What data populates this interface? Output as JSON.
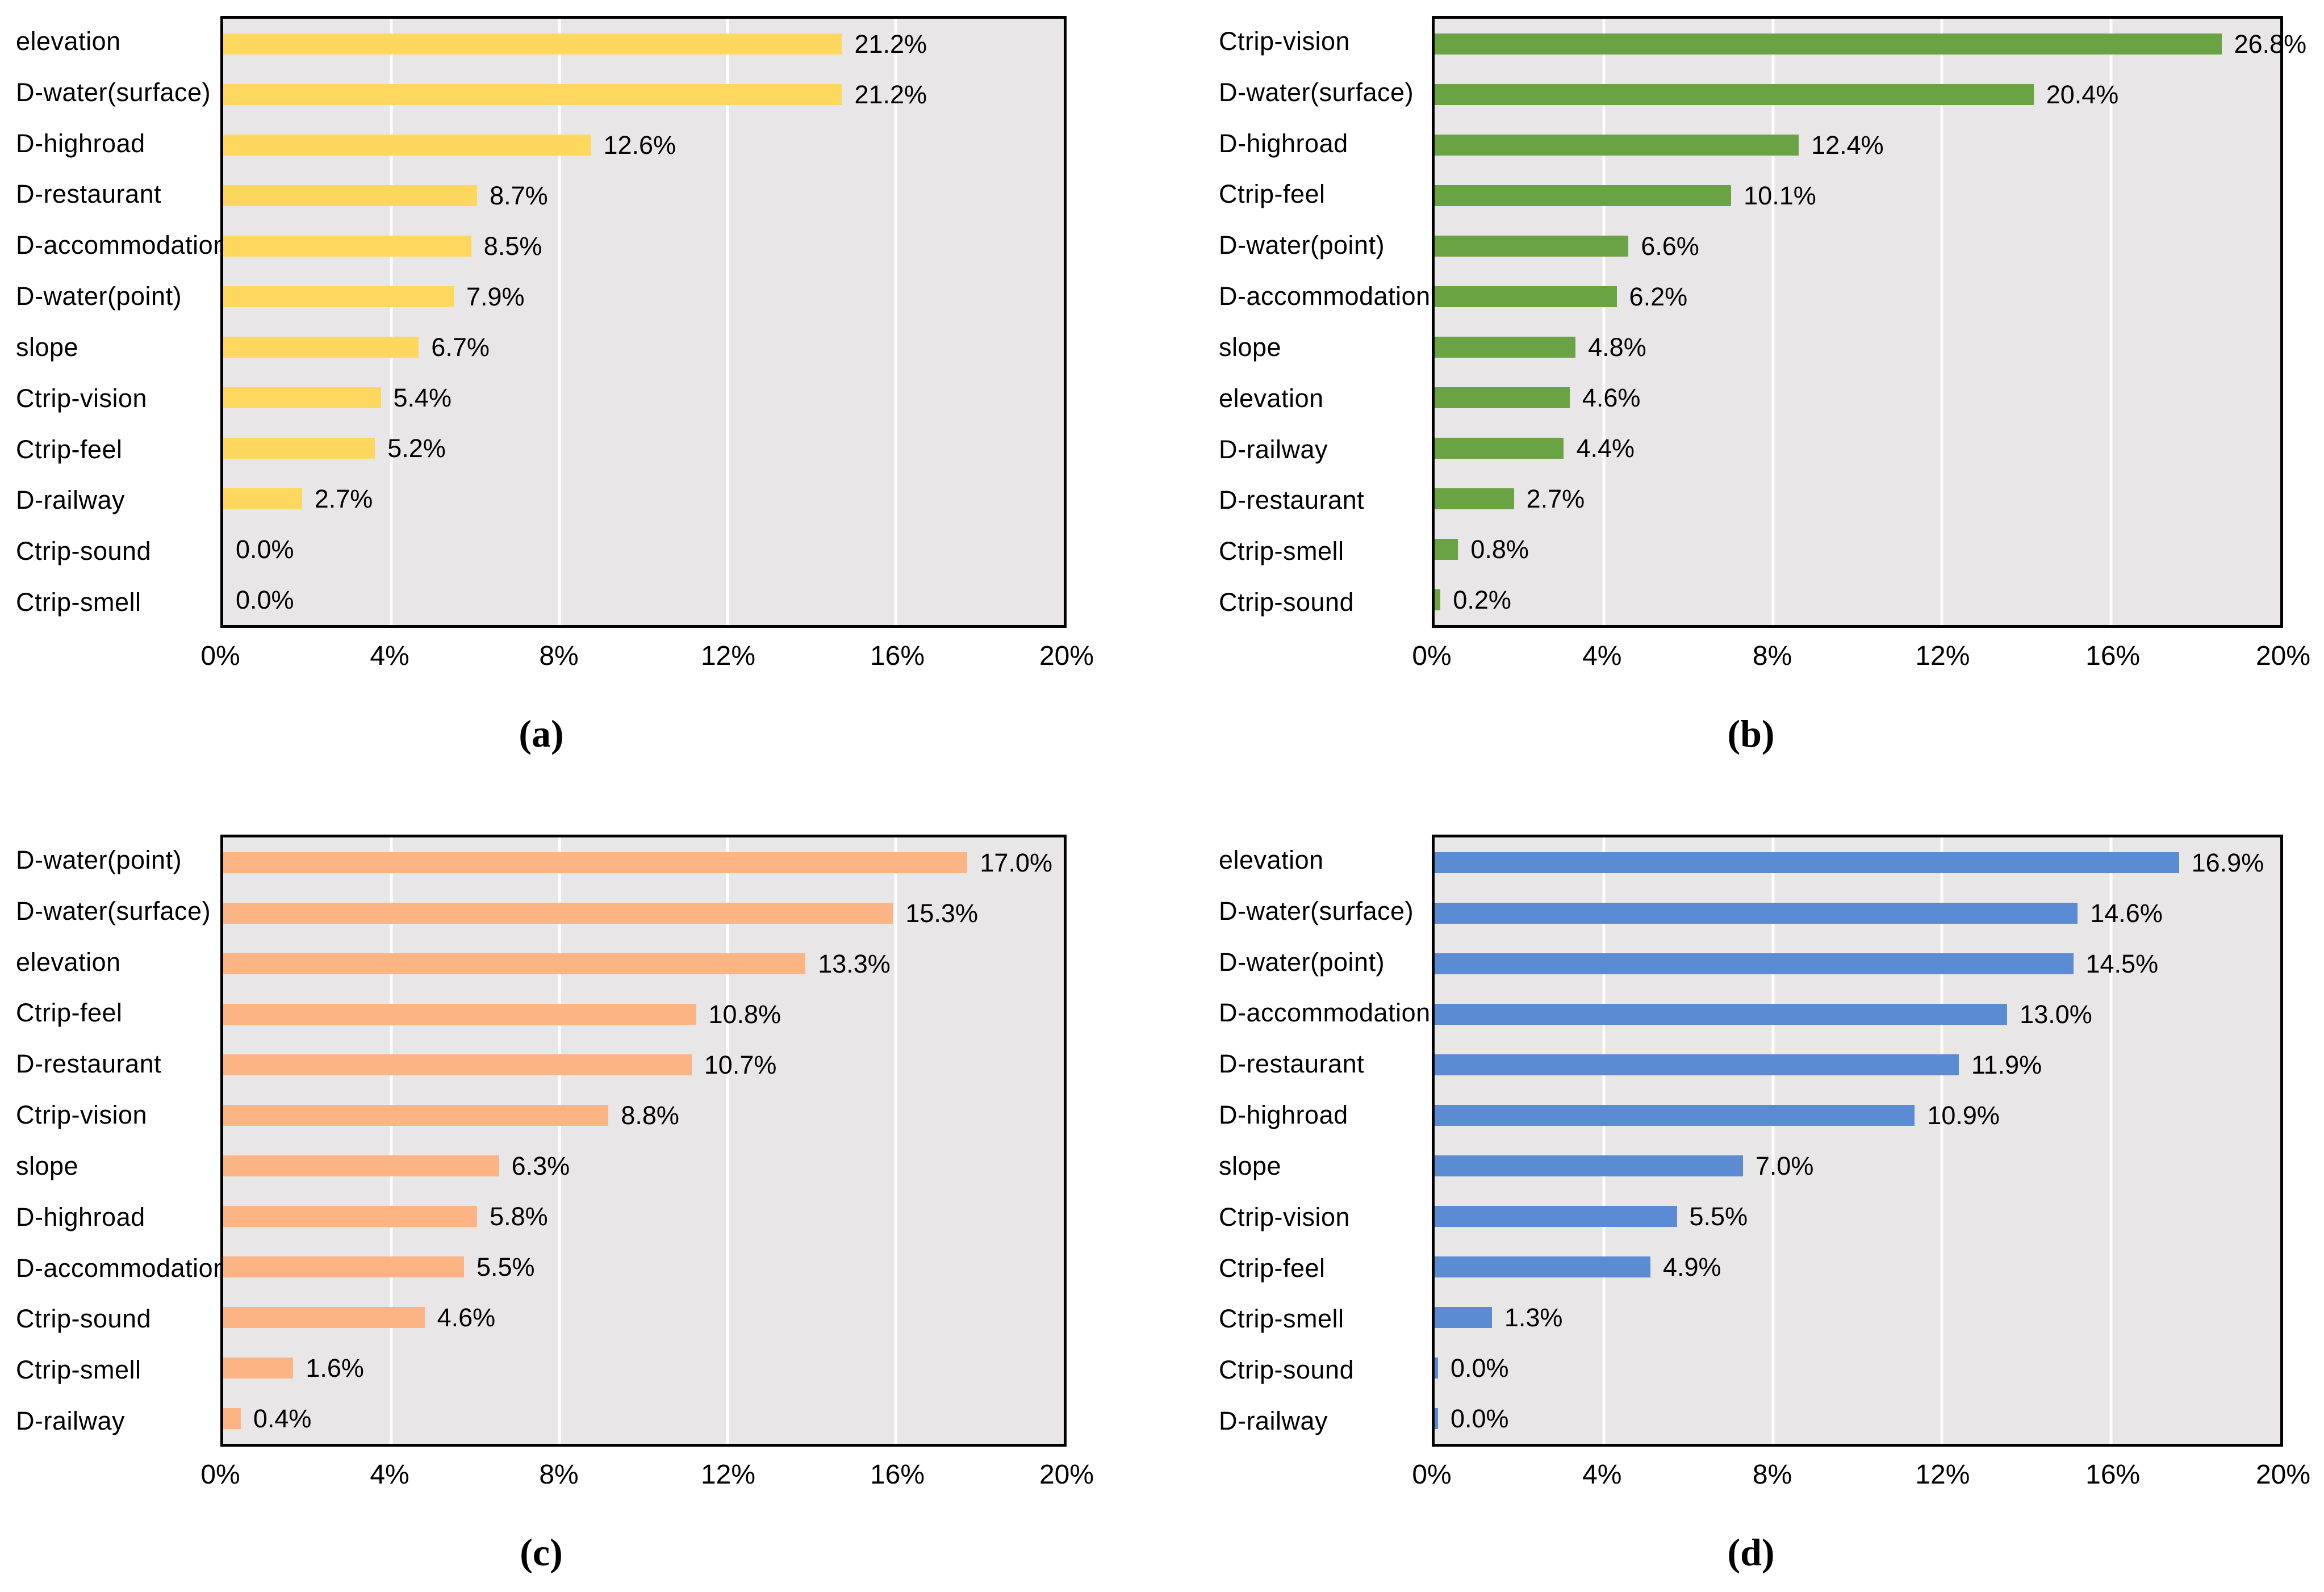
{
  "figure": {
    "background_color": "#ffffff",
    "plot_background_color": "#E8E6E6",
    "plot_border_color": "#000000",
    "gridline_color": "#ffffff"
  },
  "axis": {
    "tick_labels": [
      "0%",
      "4%",
      "8%",
      "12%",
      "16%",
      "20%"
    ],
    "xlim": [
      0,
      20
    ],
    "gridline_positions_pct": [
      20,
      40,
      60,
      80
    ],
    "value_suffix": "%"
  },
  "chart_data": [
    {
      "type": "bar",
      "orientation": "horizontal",
      "panel_id": "a",
      "caption": "(a)",
      "color": "#FED75F",
      "bar_scale_max": 28.8,
      "min_sliver_pct": 0,
      "xlabel": "",
      "ylabel": "",
      "xlim": [
        0,
        20
      ],
      "categories": [
        "elevation",
        "D-water(surface)",
        "D-highroad",
        "D-restaurant",
        "D-accommodation",
        "D-water(point)",
        "slope",
        "Ctrip-vision",
        "Ctrip-feel",
        "D-railway",
        "Ctrip-sound",
        "Ctrip-smell"
      ],
      "values": [
        21.2,
        21.2,
        12.6,
        8.7,
        8.5,
        7.9,
        6.7,
        5.4,
        5.2,
        2.7,
        0.0,
        0.0
      ]
    },
    {
      "type": "bar",
      "orientation": "horizontal",
      "panel_id": "b",
      "caption": "(b)",
      "color": "#69A344",
      "bar_scale_max": 28.8,
      "min_sliver_pct": 0,
      "xlabel": "",
      "ylabel": "",
      "xlim": [
        0,
        20
      ],
      "categories": [
        "Ctrip-vision",
        "D-water(surface)",
        "D-highroad",
        "Ctrip-feel",
        "D-water(point)",
        "D-accommodation",
        "slope",
        "elevation",
        "D-railway",
        "D-restaurant",
        "Ctrip-smell",
        "Ctrip-sound"
      ],
      "values": [
        26.8,
        20.4,
        12.4,
        10.1,
        6.6,
        6.2,
        4.8,
        4.6,
        4.4,
        2.7,
        0.8,
        0.2
      ]
    },
    {
      "type": "bar",
      "orientation": "horizontal",
      "panel_id": "c",
      "caption": "(c)",
      "color": "#FCB484",
      "bar_scale_max": 19.2,
      "min_sliver_pct": 0,
      "xlabel": "",
      "ylabel": "",
      "xlim": [
        0,
        20
      ],
      "categories": [
        "D-water(point)",
        "D-water(surface)",
        "elevation",
        "Ctrip-feel",
        "D-restaurant",
        "Ctrip-vision",
        "slope",
        "D-highroad",
        "D-accommodation",
        "Ctrip-sound",
        "Ctrip-smell",
        "D-railway"
      ],
      "values": [
        17.0,
        15.3,
        13.3,
        10.8,
        10.7,
        8.8,
        6.3,
        5.8,
        5.5,
        4.6,
        1.6,
        0.4
      ]
    },
    {
      "type": "bar",
      "orientation": "horizontal",
      "panel_id": "d",
      "caption": "(d)",
      "color": "#5B8BD3",
      "bar_scale_max": 19.2,
      "min_sliver_pct": 0.4,
      "xlabel": "",
      "ylabel": "",
      "xlim": [
        0,
        20
      ],
      "categories": [
        "elevation",
        "D-water(surface)",
        "D-water(point)",
        "D-accommodation",
        "D-restaurant",
        "D-highroad",
        "slope",
        "Ctrip-vision",
        "Ctrip-feel",
        "Ctrip-smell",
        "Ctrip-sound",
        "D-railway"
      ],
      "values": [
        16.9,
        14.6,
        14.5,
        13.0,
        11.9,
        10.9,
        7.0,
        5.5,
        4.9,
        1.3,
        0.0,
        0.0
      ]
    }
  ]
}
